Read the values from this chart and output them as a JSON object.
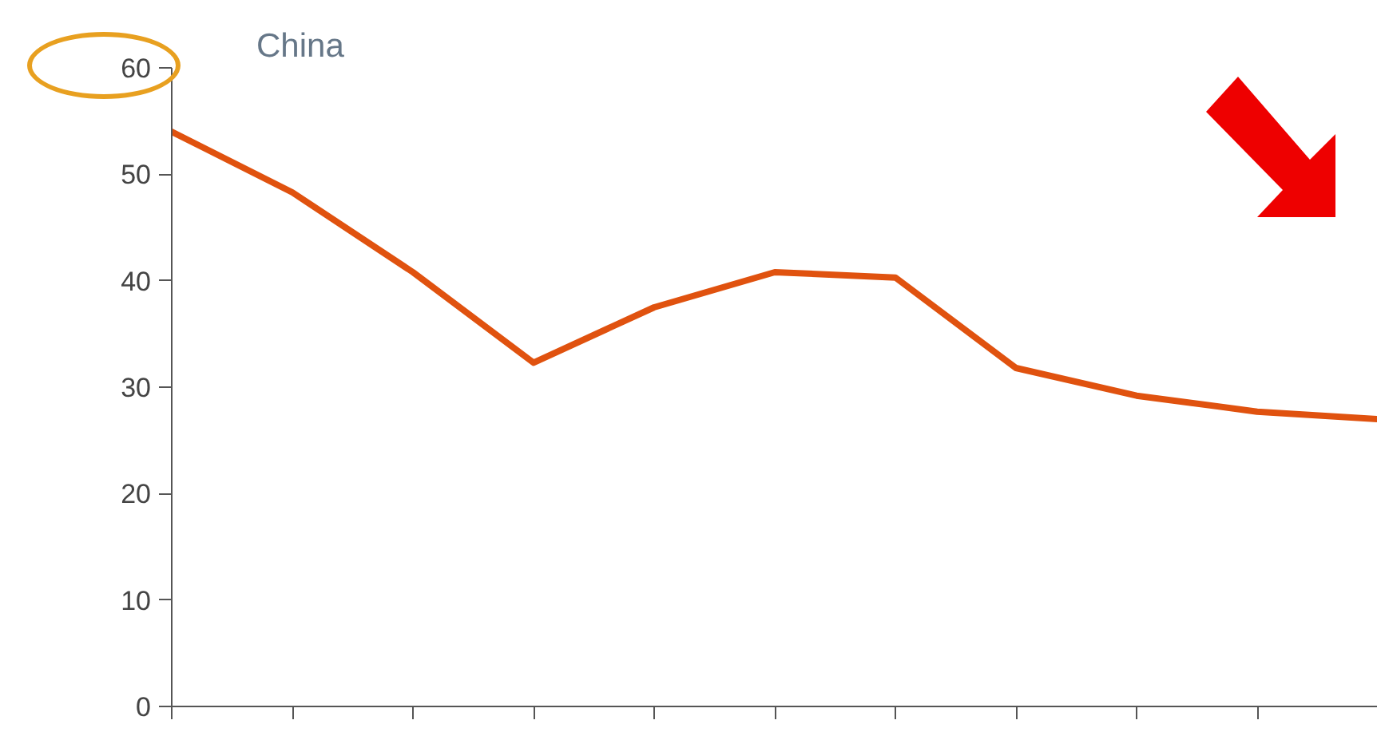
{
  "chart_data": {
    "type": "line",
    "title": "China",
    "categories": [
      null,
      null,
      null,
      null,
      null,
      null,
      null,
      null,
      null,
      null,
      null
    ],
    "series": [
      {
        "color": "#e0520f",
        "values": [
          54,
          48.3,
          40.8,
          32.3,
          37.5,
          40.8,
          40.3,
          31.8,
          29.2,
          27.7,
          27
        ]
      }
    ],
    "ylim": [
      0,
      60
    ],
    "yticks": [
      0,
      10,
      20,
      30,
      40,
      50,
      60
    ],
    "grid": false,
    "legend": false,
    "marker": "none",
    "line_style": "solid"
  }
}
